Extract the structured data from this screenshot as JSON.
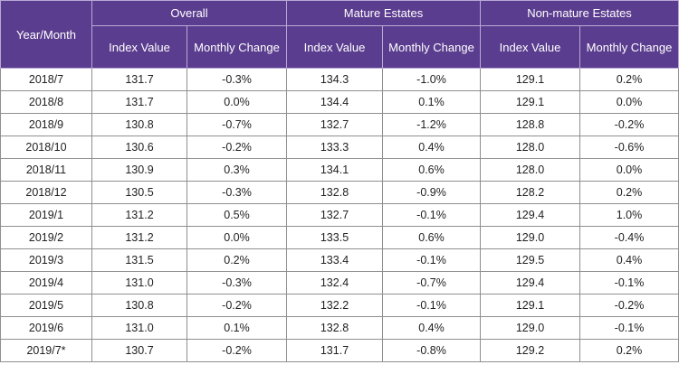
{
  "table": {
    "header": {
      "year_month": "Year/Month",
      "groups": [
        "Overall",
        "Mature Estates",
        "Non-mature Estates"
      ],
      "subheaders": [
        "Index Value",
        "Monthly Change",
        "Index Value",
        "Monthly Change",
        "Index Value",
        "Monthly Change"
      ]
    },
    "rows": [
      [
        "2018/7",
        "131.7",
        "-0.3%",
        "134.3",
        "-1.0%",
        "129.1",
        "0.2%"
      ],
      [
        "2018/8",
        "131.7",
        "0.0%",
        "134.4",
        "0.1%",
        "129.1",
        "0.0%"
      ],
      [
        "2018/9",
        "130.8",
        "-0.7%",
        "132.7",
        "-1.2%",
        "128.8",
        "-0.2%"
      ],
      [
        "2018/10",
        "130.6",
        "-0.2%",
        "133.3",
        "0.4%",
        "128.0",
        "-0.6%"
      ],
      [
        "2018/11",
        "130.9",
        "0.3%",
        "134.1",
        "0.6%",
        "128.0",
        "0.0%"
      ],
      [
        "2018/12",
        "130.5",
        "-0.3%",
        "132.8",
        "-0.9%",
        "128.2",
        "0.2%"
      ],
      [
        "2019/1",
        "131.2",
        "0.5%",
        "132.7",
        "-0.1%",
        "129.4",
        "1.0%"
      ],
      [
        "2019/2",
        "131.2",
        "0.0%",
        "133.5",
        "0.6%",
        "129.0",
        "-0.4%"
      ],
      [
        "2019/3",
        "131.5",
        "0.2%",
        "133.4",
        "-0.1%",
        "129.5",
        "0.4%"
      ],
      [
        "2019/4",
        "131.0",
        "-0.3%",
        "132.4",
        "-0.7%",
        "129.4",
        "-0.1%"
      ],
      [
        "2019/5",
        "130.8",
        "-0.2%",
        "132.2",
        "-0.1%",
        "129.1",
        "-0.2%"
      ],
      [
        "2019/6",
        "131.0",
        "0.1%",
        "132.8",
        "0.4%",
        "129.0",
        "-0.1%"
      ],
      [
        "2019/7*",
        "130.7",
        "-0.2%",
        "131.7",
        "-0.8%",
        "129.2",
        "0.2%"
      ]
    ]
  }
}
